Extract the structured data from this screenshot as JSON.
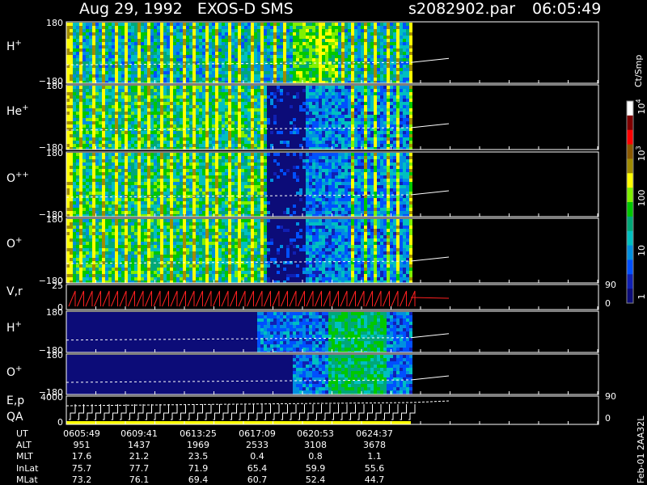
{
  "header": {
    "title": "Aug 29, 1992   EXOS-D SMS",
    "file": "s2082902.par",
    "time": "06:05:49"
  },
  "panels": [
    {
      "label": "H",
      "sup": "+",
      "top": "180",
      "bottom": "−180"
    },
    {
      "label": "He",
      "sup": "+",
      "top": "180",
      "bottom": "−180"
    },
    {
      "label": "O",
      "sup": "++",
      "top": "180",
      "bottom": "−180"
    },
    {
      "label": "O",
      "sup": "+",
      "top": "180",
      "bottom": "−180"
    },
    {
      "label": "V,r",
      "top": "25",
      "bottom": "0",
      "right_top": "90",
      "right_bottom": "0"
    },
    {
      "label": "H",
      "sup": "+",
      "top": "180",
      "bottom": "−180"
    },
    {
      "label": "O",
      "sup": "+",
      "top": "180",
      "bottom": "−180"
    },
    {
      "label": "E,p",
      "label2": "QA",
      "top": "4000",
      "bottom": "0",
      "right_top": "90",
      "right_bottom": "0"
    }
  ],
  "table": {
    "rows": [
      {
        "label": "UT",
        "values": [
          "0605:49",
          "0609:41",
          "0613:25",
          "0617:09",
          "0620:53",
          "0624:37"
        ]
      },
      {
        "label": "ALT",
        "values": [
          "951",
          "1437",
          "1969",
          "2533",
          "3108",
          "3678"
        ]
      },
      {
        "label": "MLT",
        "values": [
          "17.6",
          "21.2",
          "23.5",
          "0.4",
          "0.8",
          "1.1"
        ]
      },
      {
        "label": "InLat",
        "values": [
          "75.7",
          "77.7",
          "71.9",
          "65.4",
          "59.9",
          "55.6"
        ]
      },
      {
        "label": "MLat",
        "values": [
          "73.2",
          "76.1",
          "69.4",
          "60.7",
          "52.4",
          "44.7"
        ]
      }
    ]
  },
  "colorbar": {
    "unit": "Ct/Smp",
    "ticks": [
      {
        "base": "10",
        "exp": "4"
      },
      {
        "base": "10",
        "exp": "3"
      },
      {
        "base": "100"
      },
      {
        "base": "10"
      },
      {
        "base": "1"
      }
    ]
  },
  "footer": "Feb-01 2AA32L"
}
